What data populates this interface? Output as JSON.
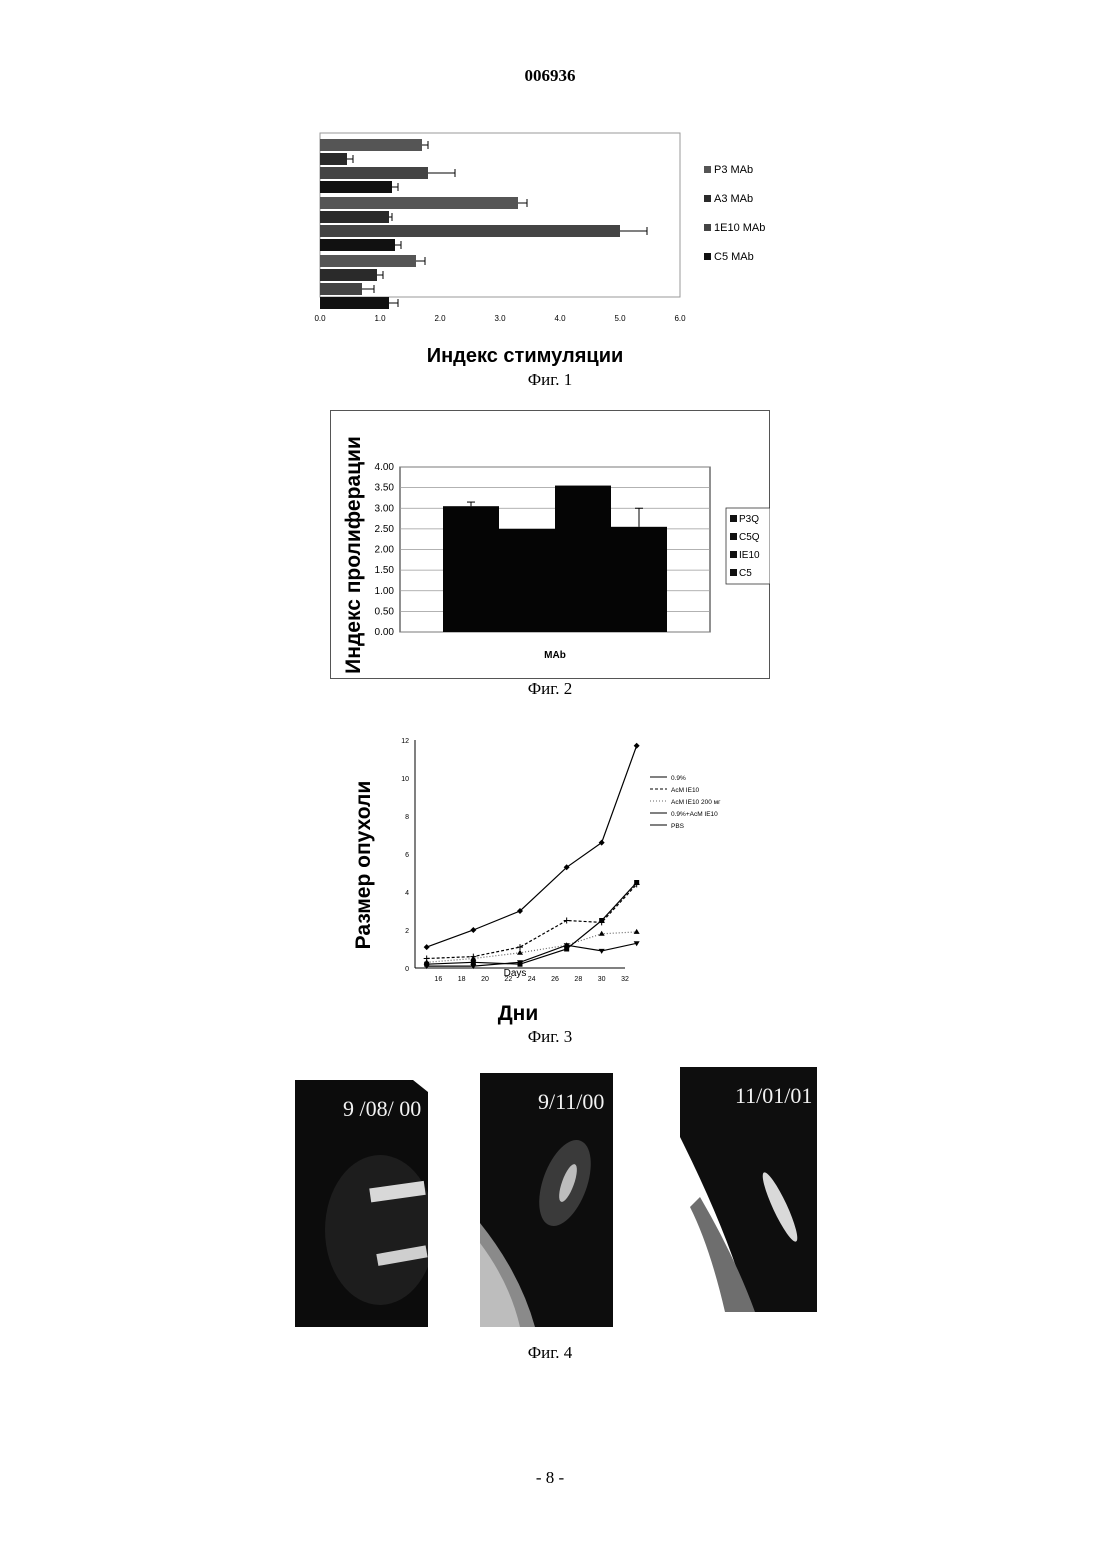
{
  "doc_number": "006936",
  "page_number": "- 8 -",
  "figures": [
    {
      "caption": "Фиг. 1"
    },
    {
      "caption": "Фиг. 2"
    },
    {
      "caption": "Фиг. 3"
    },
    {
      "caption": "Фиг. 4"
    }
  ],
  "photos": [
    {
      "date": "9 /08/ 00"
    },
    {
      "date": "9/11/00"
    },
    {
      "date": "11/01/01"
    }
  ],
  "chart_data": [
    {
      "type": "bar",
      "orientation": "horizontal",
      "xlabel": "Индекс стимуляции",
      "xlim": [
        0.0,
        6.0
      ],
      "xticks": [
        "0.0",
        "1.0",
        "2.0",
        "3.0",
        "4.0",
        "5.0",
        "6.0"
      ],
      "series": [
        {
          "name": "P3 MAb",
          "color": "#555555"
        },
        {
          "name": "A3 MAb",
          "color": "#2a2a2a"
        },
        {
          "name": "1E10 MAb",
          "color": "#444444"
        },
        {
          "name": "C5 MAb",
          "color": "#111111"
        }
      ],
      "groups": [
        {
          "values": [
            1.7,
            0.45,
            1.8,
            1.2
          ],
          "errors": [
            0.1,
            0.1,
            0.45,
            0.1
          ]
        },
        {
          "values": [
            3.3,
            1.15,
            5.0,
            1.25
          ],
          "errors": [
            0.15,
            0.05,
            0.45,
            0.1
          ]
        },
        {
          "values": [
            1.6,
            0.95,
            0.7,
            1.15
          ],
          "errors": [
            0.15,
            0.1,
            0.2,
            0.15
          ]
        }
      ],
      "legend": "right"
    },
    {
      "type": "bar",
      "ylabel": "Индекс пролиферации",
      "xlabel": "MAb",
      "ylim": [
        0.0,
        4.0
      ],
      "yticks": [
        "0.00",
        "0.50",
        "1.00",
        "1.50",
        "2.00",
        "2.50",
        "3.00",
        "3.50",
        "4.00"
      ],
      "categories": [
        "P3Q",
        "C5Q",
        "IE10",
        "C5"
      ],
      "values": [
        3.05,
        2.5,
        3.55,
        2.55
      ],
      "errors": [
        0.1,
        0.0,
        0.0,
        0.45
      ],
      "legend": "right",
      "grid": true
    },
    {
      "type": "line",
      "ylabel": "Размер опухоли",
      "xlabel": "Дни",
      "axis_inline_label": "Days",
      "xlim": [
        14,
        32
      ],
      "ylim": [
        0,
        12
      ],
      "xticks": [
        "16",
        "18",
        "20",
        "22",
        "24",
        "26",
        "28",
        "30",
        "32"
      ],
      "yticks": [
        "0",
        "2",
        "4",
        "6",
        "8",
        "10",
        "12"
      ],
      "x": [
        15,
        19,
        23,
        27,
        30,
        33
      ],
      "series": [
        {
          "name": "0.9%",
          "values": [
            1.1,
            2.0,
            3.0,
            5.3,
            6.6,
            11.7
          ]
        },
        {
          "name": "AcM IE10",
          "values": [
            0.5,
            0.6,
            1.1,
            2.5,
            2.4,
            4.4
          ]
        },
        {
          "name": "AcM IE10 200 мг",
          "values": [
            0.3,
            0.5,
            0.8,
            1.2,
            1.8,
            1.9
          ]
        },
        {
          "name": "0.9%+AcM IE10",
          "values": [
            0.1,
            0.1,
            0.3,
            1.2,
            0.9,
            1.3
          ]
        },
        {
          "name": "PBS",
          "values": [
            0.2,
            0.3,
            0.2,
            1.0,
            2.5,
            4.5
          ]
        }
      ],
      "legend": "right"
    }
  ]
}
